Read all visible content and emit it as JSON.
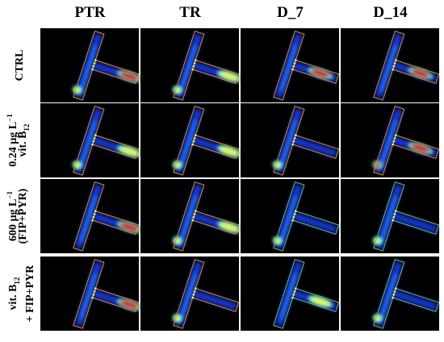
{
  "columns": [
    "PTR",
    "TR",
    "D_7",
    "D_14"
  ],
  "rows": [
    {
      "label_lines": [
        [
          {
            "text": "CTRL"
          }
        ]
      ]
    },
    {
      "label_lines": [
        [
          {
            "text": "0.24 µg L"
          },
          {
            "text": "−1",
            "style": "sup"
          }
        ],
        [
          {
            "text": "vit. B"
          },
          {
            "text": "12",
            "style": "sub"
          }
        ]
      ]
    },
    {
      "label_lines": [
        [
          {
            "text": "600 µg L"
          },
          {
            "text": "−1",
            "style": "sup"
          }
        ],
        [
          {
            "text": "(FIP+PYR)"
          }
        ]
      ]
    },
    {
      "label_lines": [
        [
          {
            "text": "vit. B"
          },
          {
            "text": "12",
            "style": "sub"
          }
        ],
        [
          {
            "text": "+ FIP+PYR"
          }
        ]
      ]
    }
  ]
}
